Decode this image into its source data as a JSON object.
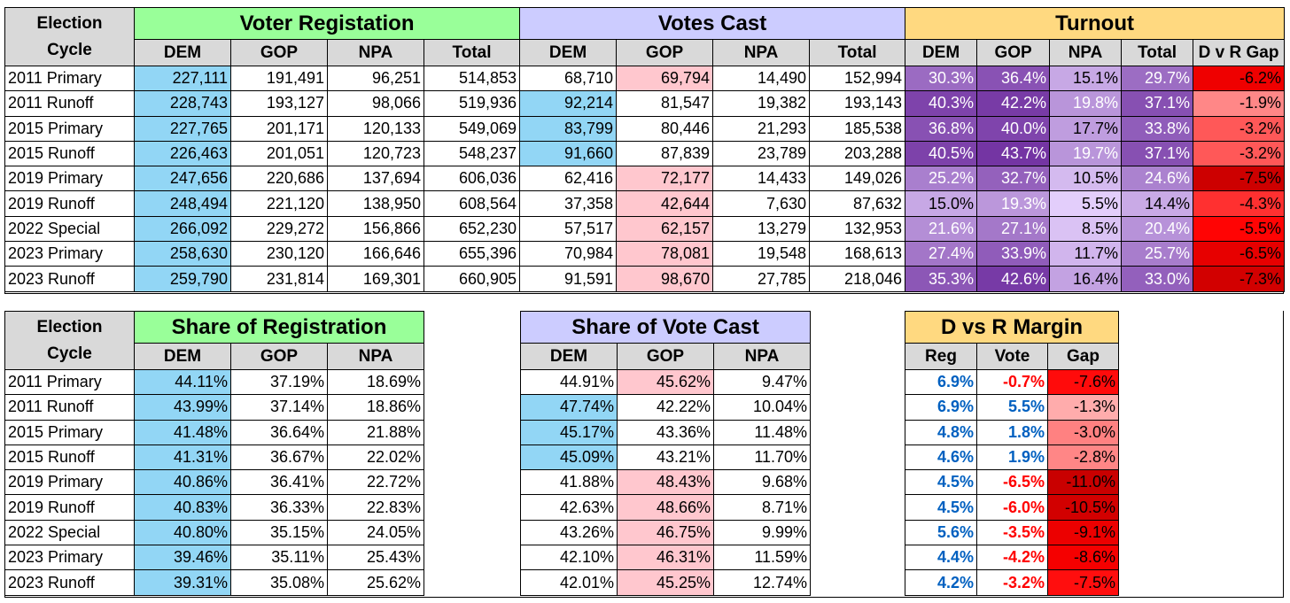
{
  "top": {
    "election_cycle_label": "Election\nCycle",
    "groups": {
      "registration": "Voter Registation",
      "votes": "Votes Cast",
      "turnout": "Turnout"
    },
    "sub_headers": {
      "dem": "DEM",
      "gop": "GOP",
      "npa": "NPA",
      "total": "Total",
      "gap": "D v R Gap"
    },
    "rows": [
      {
        "cycle": "2011 Primary",
        "reg": [
          "227,111",
          "191,491",
          "96,251",
          "514,853"
        ],
        "votes": [
          "68,710",
          "69,794",
          "14,490",
          "152,994"
        ],
        "turnout": [
          "30.3%",
          "36.4%",
          "15.1%",
          "29.7%",
          "-6.2%"
        ]
      },
      {
        "cycle": "2011 Runoff",
        "reg": [
          "228,743",
          "193,127",
          "98,066",
          "519,936"
        ],
        "votes": [
          "92,214",
          "81,547",
          "19,382",
          "193,143"
        ],
        "turnout": [
          "40.3%",
          "42.2%",
          "19.8%",
          "37.1%",
          "-1.9%"
        ]
      },
      {
        "cycle": "2015 Primary",
        "reg": [
          "227,765",
          "201,171",
          "120,133",
          "549,069"
        ],
        "votes": [
          "83,799",
          "80,446",
          "21,293",
          "185,538"
        ],
        "turnout": [
          "36.8%",
          "40.0%",
          "17.7%",
          "33.8%",
          "-3.2%"
        ]
      },
      {
        "cycle": "2015 Runoff",
        "reg": [
          "226,463",
          "201,051",
          "120,723",
          "548,237"
        ],
        "votes": [
          "91,660",
          "87,839",
          "23,789",
          "203,288"
        ],
        "turnout": [
          "40.5%",
          "43.7%",
          "19.7%",
          "37.1%",
          "-3.2%"
        ]
      },
      {
        "cycle": "2019 Primary",
        "reg": [
          "247,656",
          "220,686",
          "137,694",
          "606,036"
        ],
        "votes": [
          "62,416",
          "72,177",
          "14,433",
          "149,026"
        ],
        "turnout": [
          "25.2%",
          "32.7%",
          "10.5%",
          "24.6%",
          "-7.5%"
        ]
      },
      {
        "cycle": "2019 Runoff",
        "reg": [
          "248,494",
          "221,120",
          "138,950",
          "608,564"
        ],
        "votes": [
          "37,358",
          "42,644",
          "7,630",
          "87,632"
        ],
        "turnout": [
          "15.0%",
          "19.3%",
          "5.5%",
          "14.4%",
          "-4.3%"
        ]
      },
      {
        "cycle": "2022 Special",
        "reg": [
          "266,092",
          "229,272",
          "156,866",
          "652,230"
        ],
        "votes": [
          "57,517",
          "62,157",
          "13,279",
          "132,953"
        ],
        "turnout": [
          "21.6%",
          "27.1%",
          "8.5%",
          "20.4%",
          "-5.5%"
        ]
      },
      {
        "cycle": "2023 Primary",
        "reg": [
          "258,630",
          "230,120",
          "166,646",
          "655,396"
        ],
        "votes": [
          "70,984",
          "78,081",
          "19,548",
          "168,613"
        ],
        "turnout": [
          "27.4%",
          "33.9%",
          "11.7%",
          "25.7%",
          "-6.5%"
        ]
      },
      {
        "cycle": "2023 Runoff",
        "reg": [
          "259,790",
          "231,814",
          "169,301",
          "660,905"
        ],
        "votes": [
          "91,591",
          "98,670",
          "27,785",
          "218,046"
        ],
        "turnout": [
          "35.3%",
          "42.6%",
          "16.4%",
          "33.0%",
          "-7.3%"
        ]
      }
    ]
  },
  "bottom": {
    "election_cycle_label": "Election\nCycle",
    "groups": {
      "share_reg": "Share of Registration",
      "share_vote": "Share of Vote Cast",
      "margin": "D vs R Margin"
    },
    "sub_headers": {
      "dem": "DEM",
      "gop": "GOP",
      "npa": "NPA",
      "reg": "Reg",
      "vote": "Vote",
      "gap": "Gap"
    },
    "rows": [
      {
        "cycle": "2011 Primary",
        "share_reg": [
          "44.11%",
          "37.19%",
          "18.69%"
        ],
        "share_vote": [
          "44.91%",
          "45.62%",
          "9.47%"
        ],
        "margin": [
          "6.9%",
          "-0.7%",
          "-7.6%"
        ]
      },
      {
        "cycle": "2011 Runoff",
        "share_reg": [
          "43.99%",
          "37.14%",
          "18.86%"
        ],
        "share_vote": [
          "47.74%",
          "42.22%",
          "10.04%"
        ],
        "margin": [
          "6.9%",
          "5.5%",
          "-1.3%"
        ]
      },
      {
        "cycle": "2015 Primary",
        "share_reg": [
          "41.48%",
          "36.64%",
          "21.88%"
        ],
        "share_vote": [
          "45.17%",
          "43.36%",
          "11.48%"
        ],
        "margin": [
          "4.8%",
          "1.8%",
          "-3.0%"
        ]
      },
      {
        "cycle": "2015 Runoff",
        "share_reg": [
          "41.31%",
          "36.67%",
          "22.02%"
        ],
        "share_vote": [
          "45.09%",
          "43.21%",
          "11.70%"
        ],
        "margin": [
          "4.6%",
          "1.9%",
          "-2.8%"
        ]
      },
      {
        "cycle": "2019 Primary",
        "share_reg": [
          "40.86%",
          "36.41%",
          "22.72%"
        ],
        "share_vote": [
          "41.88%",
          "48.43%",
          "9.68%"
        ],
        "margin": [
          "4.5%",
          "-6.5%",
          "-11.0%"
        ]
      },
      {
        "cycle": "2019 Runoff",
        "share_reg": [
          "40.83%",
          "36.33%",
          "22.83%"
        ],
        "share_vote": [
          "42.63%",
          "48.66%",
          "8.71%"
        ],
        "margin": [
          "4.5%",
          "-6.0%",
          "-10.5%"
        ]
      },
      {
        "cycle": "2022 Special",
        "share_reg": [
          "40.80%",
          "35.15%",
          "24.05%"
        ],
        "share_vote": [
          "43.26%",
          "46.75%",
          "9.99%"
        ],
        "margin": [
          "5.6%",
          "-3.5%",
          "-9.1%"
        ]
      },
      {
        "cycle": "2023 Primary",
        "share_reg": [
          "39.46%",
          "35.11%",
          "25.43%"
        ],
        "share_vote": [
          "42.10%",
          "46.31%",
          "11.59%"
        ],
        "margin": [
          "4.4%",
          "-4.2%",
          "-8.6%"
        ]
      },
      {
        "cycle": "2023 Runoff",
        "share_reg": [
          "39.31%",
          "35.08%",
          "25.62%"
        ],
        "share_vote": [
          "42.01%",
          "45.25%",
          "12.74%"
        ],
        "margin": [
          "4.2%",
          "-3.2%",
          "-7.5%"
        ]
      }
    ]
  },
  "colors": {
    "dem_highlight": "#92d6f5",
    "gop_highlight": "#ffc7ce",
    "registration_header": "#99ff99",
    "votes_header": "#ccccff",
    "turnout_header": "#ffd980",
    "subheader_grey": "#d9d9d9",
    "reg_margin_text": "#0060c0",
    "vote_margin_negative": "#ff0000"
  }
}
